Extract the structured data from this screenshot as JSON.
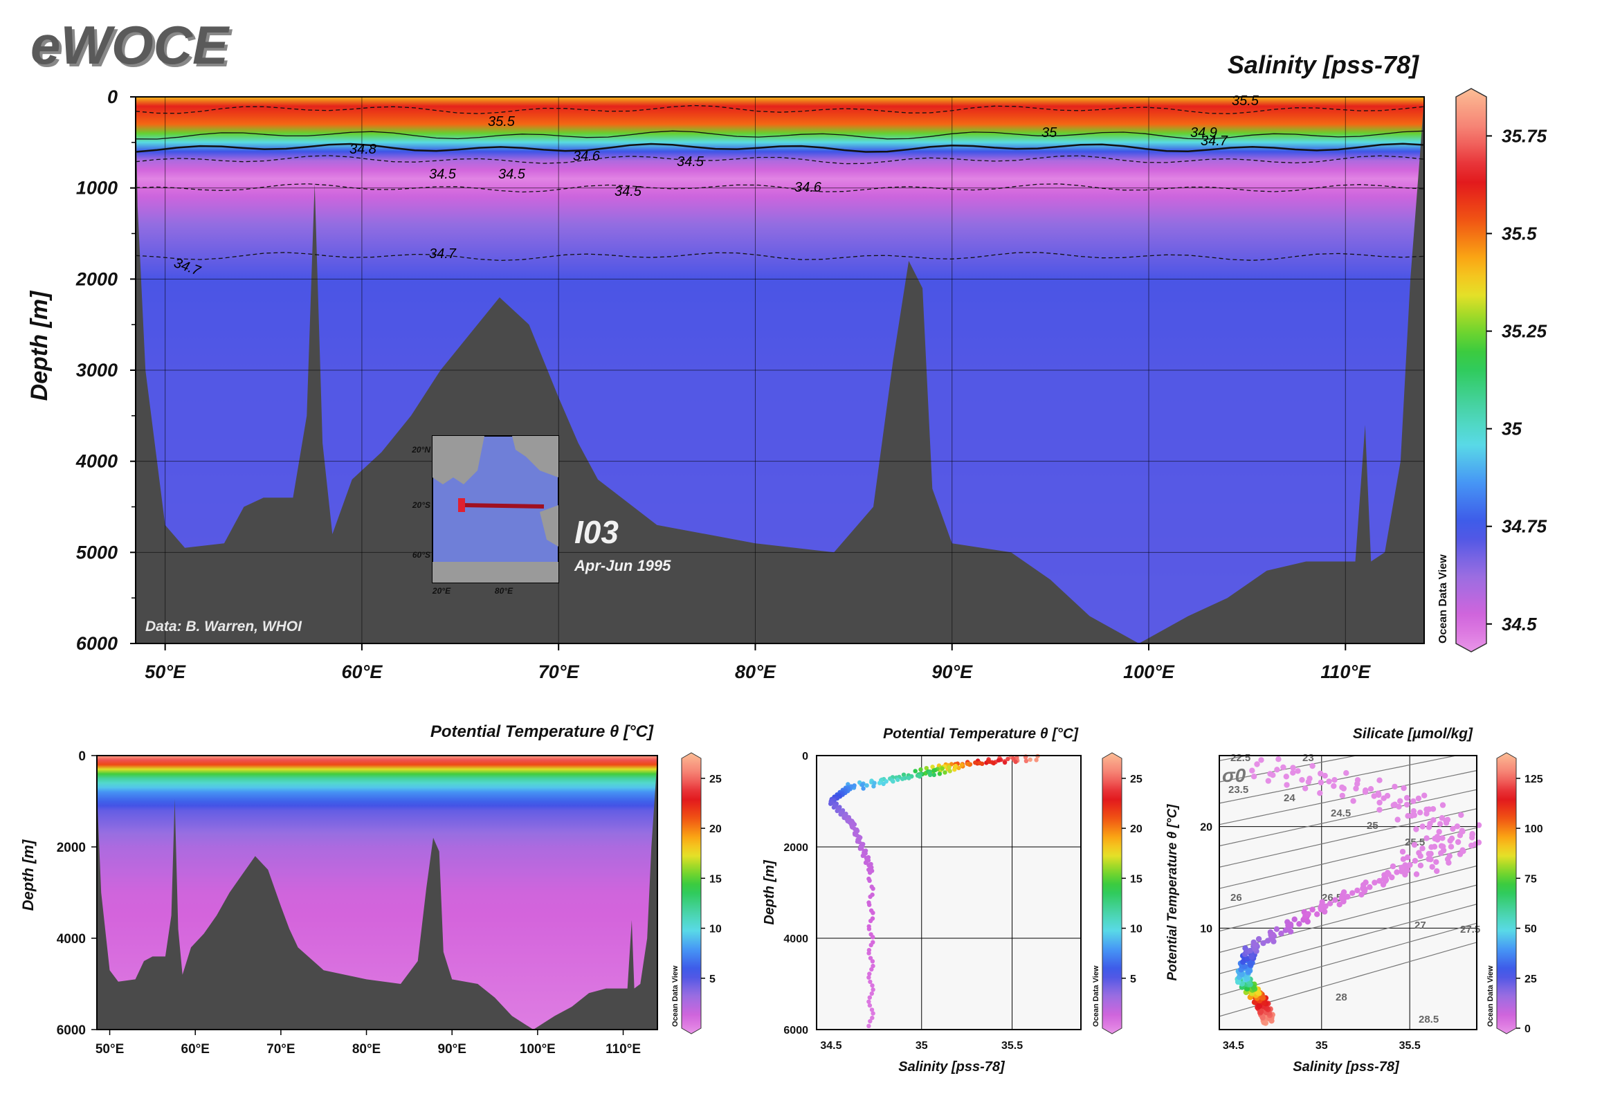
{
  "logo": "eWOCE",
  "main": {
    "title": "Salinity [pss-78]",
    "ylabel": "Depth [m]",
    "yticks": [
      "0",
      "1000",
      "2000",
      "3000",
      "4000",
      "5000",
      "6000"
    ],
    "xticks": [
      "50°E",
      "60°E",
      "70°E",
      "80°E",
      "90°E",
      "100°E",
      "110°E"
    ],
    "credit": "Data: B. Warren, WHOI",
    "section": "I03",
    "period": "Apr-Jun 1995",
    "contour_labels": [
      "35.5",
      "35.5",
      "35",
      "34.9",
      "34.7",
      "34.8",
      "34.6",
      "34.5",
      "34.5",
      "34.5",
      "34.5",
      "34.6",
      "34.7",
      "34.7"
    ],
    "inset_ticks": [
      "20°N",
      "20°S",
      "60°S",
      "20°E",
      "80°E"
    ],
    "colorbar_ticks": [
      "35.75",
      "35.5",
      "35.25",
      "35",
      "34.75",
      "34.5"
    ],
    "odv": "Ocean Data View"
  },
  "panel_theta_section": {
    "title": "Potential Temperature θ [°C]",
    "ylabel": "Depth [m]",
    "yticks": [
      "0",
      "2000",
      "4000",
      "6000"
    ],
    "xticks": [
      "50°E",
      "60°E",
      "70°E",
      "80°E",
      "90°E",
      "100°E",
      "110°E"
    ],
    "colorbar_ticks": [
      "25",
      "20",
      "15",
      "10",
      "5"
    ],
    "odv": "Ocean Data View"
  },
  "panel_profile": {
    "title": "Potential Temperature θ [°C]",
    "ylabel": "Depth [m]",
    "xlabel": "Salinity [pss-78]",
    "yticks": [
      "0",
      "2000",
      "4000",
      "6000"
    ],
    "xticks": [
      "34.5",
      "35",
      "35.5"
    ],
    "colorbar_ticks": [
      "25",
      "20",
      "15",
      "10",
      "5"
    ],
    "odv": "Ocean Data View"
  },
  "panel_ts": {
    "title": "Silicate [µmol/kg]",
    "ylabel": "Potential Temperature θ [°C]",
    "xlabel": "Salinity [pss-78]",
    "yticks": [
      "20",
      "10"
    ],
    "xticks": [
      "34.5",
      "35",
      "35.5"
    ],
    "sigma_label": "σ0",
    "isopycnal_labels": [
      "22.5",
      "23",
      "23.5",
      "24",
      "24.5",
      "25",
      "25.5",
      "26",
      "26.5",
      "27",
      "27.5",
      "28",
      "28.5"
    ],
    "colorbar_ticks": [
      "125",
      "100",
      "75",
      "50",
      "25",
      "0"
    ],
    "odv": "Ocean Data View"
  },
  "chart_data": [
    {
      "type": "heatmap",
      "title": "Salinity [pss-78]",
      "xlabel": "",
      "ylabel": "Depth [m]",
      "xlim": [
        48.5,
        114
      ],
      "ylim": [
        6000,
        0
      ],
      "colorbar": {
        "min": 34.45,
        "max": 35.85,
        "ticks": [
          35.75,
          35.5,
          35.25,
          35,
          34.75,
          34.5
        ]
      },
      "salinity_profile": [
        {
          "depth": 0,
          "value": 35.4
        },
        {
          "depth": 100,
          "value": 35.6
        },
        {
          "depth": 300,
          "value": 35.5
        },
        {
          "depth": 450,
          "value": 35.1
        },
        {
          "depth": 550,
          "value": 34.85
        },
        {
          "depth": 700,
          "value": 34.6
        },
        {
          "depth": 900,
          "value": 34.48
        },
        {
          "depth": 1100,
          "value": 34.55
        },
        {
          "depth": 1400,
          "value": 34.65
        },
        {
          "depth": 2000,
          "value": 34.74
        },
        {
          "depth": 3000,
          "value": 34.73
        },
        {
          "depth": 6000,
          "value": 34.72
        }
      ],
      "bathymetry": [
        {
          "lon": 48.6,
          "depth": 1200
        },
        {
          "lon": 49,
          "depth": 3000
        },
        {
          "lon": 50,
          "depth": 4700
        },
        {
          "lon": 51,
          "depth": 4950
        },
        {
          "lon": 53,
          "depth": 4900
        },
        {
          "lon": 54,
          "depth": 4500
        },
        {
          "lon": 55,
          "depth": 4400
        },
        {
          "lon": 56.5,
          "depth": 4400
        },
        {
          "lon": 57.2,
          "depth": 3500
        },
        {
          "lon": 57.6,
          "depth": 950
        },
        {
          "lon": 58,
          "depth": 3800
        },
        {
          "lon": 58.5,
          "depth": 4800
        },
        {
          "lon": 59.5,
          "depth": 4200
        },
        {
          "lon": 61,
          "depth": 3900
        },
        {
          "lon": 62.5,
          "depth": 3500
        },
        {
          "lon": 64,
          "depth": 3000
        },
        {
          "lon": 65.5,
          "depth": 2600
        },
        {
          "lon": 67,
          "depth": 2200
        },
        {
          "lon": 68.5,
          "depth": 2500
        },
        {
          "lon": 70,
          "depth": 3300
        },
        {
          "lon": 71,
          "depth": 3800
        },
        {
          "lon": 72,
          "depth": 4200
        },
        {
          "lon": 75,
          "depth": 4700
        },
        {
          "lon": 80,
          "depth": 4900
        },
        {
          "lon": 84,
          "depth": 5000
        },
        {
          "lon": 86,
          "depth": 4500
        },
        {
          "lon": 87,
          "depth": 2900
        },
        {
          "lon": 87.8,
          "depth": 1800
        },
        {
          "lon": 88.5,
          "depth": 2100
        },
        {
          "lon": 89,
          "depth": 4300
        },
        {
          "lon": 90,
          "depth": 4900
        },
        {
          "lon": 93,
          "depth": 5000
        },
        {
          "lon": 95,
          "depth": 5300
        },
        {
          "lon": 97,
          "depth": 5700
        },
        {
          "lon": 99.5,
          "depth": 6000
        },
        {
          "lon": 102,
          "depth": 5700
        },
        {
          "lon": 104,
          "depth": 5500
        },
        {
          "lon": 106,
          "depth": 5200
        },
        {
          "lon": 108,
          "depth": 5100
        },
        {
          "lon": 110.5,
          "depth": 5100
        },
        {
          "lon": 111,
          "depth": 3600
        },
        {
          "lon": 111.3,
          "depth": 5100
        },
        {
          "lon": 112,
          "depth": 5000
        },
        {
          "lon": 112.8,
          "depth": 4000
        },
        {
          "lon": 113.3,
          "depth": 2000
        },
        {
          "lon": 113.8,
          "depth": 600
        },
        {
          "lon": 114,
          "depth": 0
        }
      ]
    },
    {
      "type": "heatmap",
      "title": "Potential Temperature θ [°C]",
      "ylabel": "Depth [m]",
      "xlim": [
        48.5,
        114
      ],
      "ylim": [
        6000,
        0
      ],
      "colorbar": {
        "min": 0,
        "max": 27,
        "ticks": [
          25,
          20,
          15,
          10,
          5
        ]
      },
      "theta_profile": [
        {
          "depth": 0,
          "value": 26
        },
        {
          "depth": 150,
          "value": 23
        },
        {
          "depth": 300,
          "value": 17
        },
        {
          "depth": 500,
          "value": 12
        },
        {
          "depth": 800,
          "value": 8
        },
        {
          "depth": 1200,
          "value": 5
        },
        {
          "depth": 2000,
          "value": 3
        },
        {
          "depth": 3000,
          "value": 1.8
        },
        {
          "depth": 6000,
          "value": 0.8
        }
      ]
    },
    {
      "type": "scatter",
      "title": "Potential Temperature θ [°C]",
      "xlabel": "Salinity [pss-78]",
      "ylabel": "Depth [m]",
      "xlim": [
        34.42,
        35.88
      ],
      "ylim": [
        6000,
        0
      ],
      "colorvar": "Potential Temperature θ [°C]",
      "points_summary": [
        {
          "salinity": 35.6,
          "depth": 50,
          "theta": 26
        },
        {
          "salinity": 35.2,
          "depth": 200,
          "theta": 20
        },
        {
          "salinity": 35.0,
          "depth": 400,
          "theta": 13
        },
        {
          "salinity": 34.6,
          "depth": 700,
          "theta": 8
        },
        {
          "salinity": 34.5,
          "depth": 1000,
          "theta": 5
        },
        {
          "salinity": 34.62,
          "depth": 1500,
          "theta": 3
        },
        {
          "salinity": 34.72,
          "depth": 2500,
          "theta": 2
        },
        {
          "salinity": 34.72,
          "depth": 6000,
          "theta": 0.8
        }
      ]
    },
    {
      "type": "scatter",
      "title": "Silicate [µmol/kg]",
      "xlabel": "Salinity [pss-78]",
      "ylabel": "Potential Temperature θ [°C]",
      "xlim": [
        34.42,
        35.88
      ],
      "ylim": [
        0,
        27
      ],
      "colorvar": "Silicate [µmol/kg]",
      "isopycnals": [
        22.5,
        23,
        23.5,
        24,
        24.5,
        25,
        25.5,
        26,
        26.5,
        27,
        27.5,
        28,
        28.5
      ],
      "points_summary": [
        {
          "salinity": 34.7,
          "theta": 0.8,
          "silicate": 130
        },
        {
          "salinity": 34.65,
          "theta": 3,
          "silicate": 110
        },
        {
          "salinity": 34.55,
          "theta": 5,
          "silicate": 50
        },
        {
          "salinity": 34.6,
          "theta": 8,
          "silicate": 20
        },
        {
          "salinity": 35.0,
          "theta": 12,
          "silicate": 5
        },
        {
          "salinity": 35.5,
          "theta": 16,
          "silicate": 3
        },
        {
          "salinity": 35.8,
          "theta": 19,
          "silicate": 2
        },
        {
          "salinity": 35.4,
          "theta": 23,
          "silicate": 2
        },
        {
          "salinity": 34.6,
          "theta": 26,
          "silicate": 1
        }
      ]
    }
  ]
}
